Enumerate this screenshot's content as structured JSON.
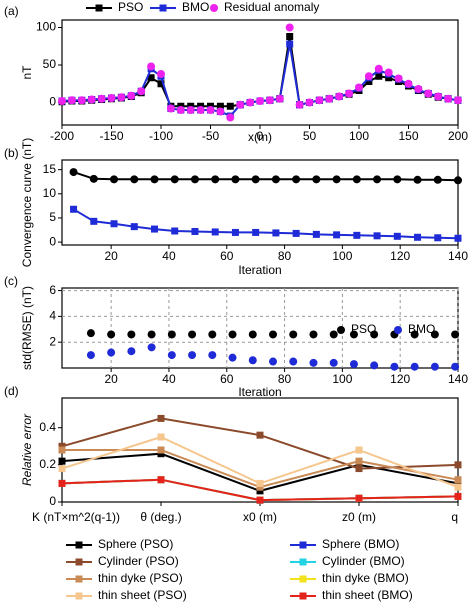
{
  "chart_data": [
    {
      "type": "line",
      "label": "(a)",
      "xlabel": "x(m)",
      "ylabel": "nT",
      "legend": "top",
      "x": [
        -200,
        -190,
        -180,
        -170,
        -160,
        -150,
        -140,
        -130,
        -120,
        -110,
        -100,
        -90,
        -80,
        -70,
        -60,
        -50,
        -40,
        -30,
        -20,
        -10,
        0,
        10,
        20,
        30,
        40,
        50,
        60,
        70,
        80,
        90,
        100,
        110,
        120,
        130,
        140,
        150,
        160,
        170,
        180,
        190,
        200
      ],
      "xlim": [
        -200,
        200
      ],
      "xticks": [
        -200,
        -150,
        -100,
        -50,
        0,
        50,
        100,
        150,
        200
      ],
      "ylim": [
        -30,
        110
      ],
      "yticks": [
        0,
        50,
        100
      ],
      "grid": false,
      "series": [
        {
          "name": "PSO",
          "color": "#000000",
          "marker": "square",
          "line": true,
          "values": [
            1,
            2,
            2,
            3,
            4,
            5,
            6,
            8,
            13,
            33,
            25,
            -5,
            -5,
            -5,
            -5,
            -5,
            -5,
            -5,
            -3,
            0,
            2,
            3,
            5,
            88,
            -3,
            0,
            3,
            5,
            8,
            11,
            16,
            28,
            35,
            33,
            28,
            22,
            16,
            11,
            7,
            5,
            3
          ]
        },
        {
          "name": "BMO",
          "color": "#1f2bd6",
          "marker": "square",
          "line": true,
          "values": [
            2,
            3,
            3,
            4,
            5,
            6,
            7,
            9,
            15,
            45,
            35,
            -8,
            -10,
            -10,
            -10,
            -10,
            -12,
            -18,
            -3,
            0,
            2,
            3,
            5,
            78,
            -3,
            0,
            3,
            5,
            8,
            12,
            19,
            33,
            43,
            38,
            31,
            24,
            17,
            12,
            8,
            5,
            3
          ]
        },
        {
          "name": "Residual anomaly",
          "color": "#ee22ee",
          "marker": "circle",
          "line": false,
          "values": [
            2,
            3,
            3,
            4,
            5,
            6,
            7,
            9,
            15,
            48,
            38,
            -8,
            -10,
            -10,
            -10,
            -10,
            -12,
            -20,
            -3,
            0,
            2,
            3,
            5,
            100,
            -3,
            0,
            3,
            5,
            8,
            12,
            20,
            35,
            45,
            40,
            32,
            25,
            18,
            12,
            8,
            5,
            3
          ]
        }
      ]
    },
    {
      "type": "line",
      "label": "(b)",
      "xlabel": "Iteration",
      "ylabel": "Convergence curve (nT)",
      "legend": "none",
      "x": [
        7,
        14,
        21,
        28,
        35,
        42,
        49,
        56,
        63,
        70,
        77,
        84,
        91,
        98,
        105,
        112,
        119,
        126,
        133,
        140
      ],
      "xlim": [
        3,
        140
      ],
      "xticks": [
        20,
        40,
        60,
        80,
        100,
        120,
        140
      ],
      "ylim": [
        -0.6,
        17
      ],
      "yticks": [
        0,
        5,
        10,
        15
      ],
      "grid": false,
      "series": [
        {
          "name": "PSO",
          "color": "#000000",
          "marker": "circle",
          "line": true,
          "values": [
            14.5,
            13.1,
            13,
            13,
            13,
            13,
            13,
            13,
            13,
            13,
            13,
            13,
            13,
            13,
            13,
            13,
            13,
            12.9,
            12.9,
            12.8
          ]
        },
        {
          "name": "BMO",
          "color": "#1f2bd6",
          "marker": "square",
          "line": true,
          "values": [
            6.8,
            4.3,
            3.8,
            3.2,
            2.7,
            2.3,
            2.2,
            2.1,
            2.0,
            2.0,
            1.9,
            1.8,
            1.6,
            1.5,
            1.4,
            1.3,
            1.2,
            1.0,
            0.9,
            0.8
          ]
        }
      ]
    },
    {
      "type": "scatter",
      "label": "(c)",
      "xlabel": "Iteration",
      "ylabel": "std(RMSE) (nT)",
      "legend": "upper right",
      "x": [
        13,
        20,
        27,
        34,
        41,
        48,
        55,
        62,
        69,
        76,
        83,
        90,
        97,
        104,
        111,
        118,
        125,
        132,
        139
      ],
      "xlim": [
        3,
        140
      ],
      "xticks": [
        20,
        40,
        60,
        80,
        100,
        120,
        140
      ],
      "ylim": [
        0,
        6.2
      ],
      "yticks": [
        2,
        4,
        6
      ],
      "grid": true,
      "series": [
        {
          "name": "PSO",
          "color": "#000000",
          "marker": "circle",
          "line": false,
          "values": [
            2.7,
            2.6,
            2.6,
            2.6,
            2.6,
            2.6,
            2.6,
            2.6,
            2.6,
            2.6,
            2.6,
            2.6,
            2.6,
            2.6,
            2.6,
            2.6,
            2.6,
            2.6,
            2.6
          ]
        },
        {
          "name": "BMO",
          "color": "#1f2bd6",
          "marker": "circle",
          "line": false,
          "values": [
            1.0,
            1.2,
            1.3,
            1.6,
            1.0,
            1.0,
            1.0,
            0.8,
            0.6,
            0.5,
            0.5,
            0.4,
            0.4,
            0.3,
            0.2,
            0.1,
            0.1,
            0.1,
            0.1
          ]
        }
      ]
    },
    {
      "type": "line",
      "label": "(d)",
      "ylabel": "Relative error",
      "legend": "bottom",
      "categories": [
        "K (nT×m^2(q-1))",
        "θ (deg.)",
        "x0 (m)",
        "z0 (m)",
        "q"
      ],
      "ylim": [
        0,
        0.56
      ],
      "yticks": [
        0,
        0.2,
        0.4
      ],
      "grid": false,
      "series": [
        {
          "name": "Sphere (PSO)",
          "color": "#000000",
          "marker": "square",
          "line": true,
          "values": [
            0.22,
            0.26,
            0.06,
            0.2,
            0.1
          ]
        },
        {
          "name": "Cylinder (PSO)",
          "color": "#8b4a2b",
          "marker": "square",
          "line": true,
          "values": [
            0.3,
            0.45,
            0.36,
            0.18,
            0.2
          ]
        },
        {
          "name": "thin dyke (PSO)",
          "color": "#c98a55",
          "marker": "square",
          "line": true,
          "values": [
            0.28,
            0.28,
            0.08,
            0.22,
            0.12
          ]
        },
        {
          "name": "thin sheet (PSO)",
          "color": "#f5c68e",
          "marker": "square",
          "line": true,
          "values": [
            0.18,
            0.35,
            0.1,
            0.28,
            0.08
          ]
        },
        {
          "name": "Sphere (BMO)",
          "color": "#1f2bd6",
          "marker": "square",
          "line": true,
          "values": [
            0.1,
            0.12,
            0.01,
            0.02,
            0.03
          ]
        },
        {
          "name": "Cylinder (BMO)",
          "color": "#22d3e6",
          "marker": "square",
          "line": true,
          "values": [
            0.1,
            0.12,
            0.01,
            0.02,
            0.03
          ]
        },
        {
          "name": "thin dyke (BMO)",
          "color": "#f2e21a",
          "marker": "square",
          "line": true,
          "values": [
            0.1,
            0.12,
            0.01,
            0.02,
            0.03
          ]
        },
        {
          "name": "thin sheet (BMO)",
          "color": "#e3231c",
          "marker": "square",
          "line": true,
          "values": [
            0.1,
            0.12,
            0.01,
            0.02,
            0.03
          ]
        }
      ]
    }
  ]
}
